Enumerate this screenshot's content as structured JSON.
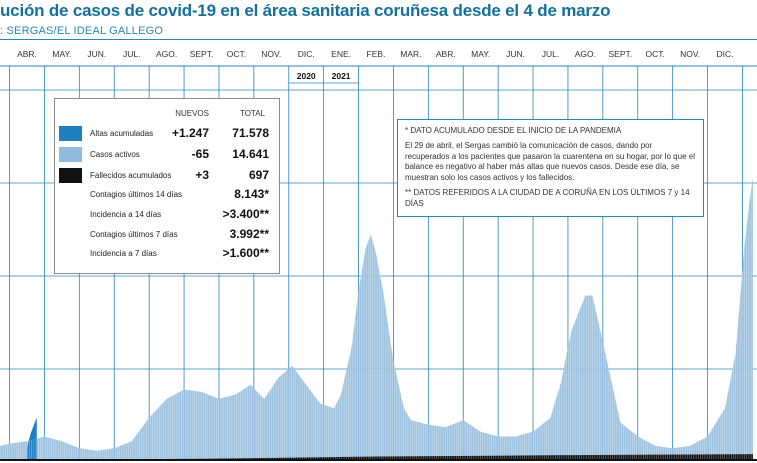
{
  "title": "ución de casos de covid-19 en el área sanitaria coruñesa desde el 4 de marzo",
  "source": ": SERGAS/EL IDEAL GALLEGO",
  "colors": {
    "altas": "#1f7fbf",
    "activos": "#93bbdd",
    "fallecidos": "#111111",
    "accent": "#2a86b8"
  },
  "legend": {
    "header_nuevos": "NUEVOS",
    "header_total": "TOTAL",
    "rows": [
      {
        "swatch": "altas",
        "label": "Altas acumuladas",
        "nuevos": "+1.247",
        "total": "71.578"
      },
      {
        "swatch": "activos",
        "label": "Casos activos",
        "nuevos": "-65",
        "total": "14.641"
      },
      {
        "swatch": "fallecidos",
        "label": "Fallecidos acumulados",
        "nuevos": "+3",
        "total": "697"
      },
      {
        "label": "Contagios últimos 14 días",
        "total": "8.143*"
      },
      {
        "label": "Incidencia a 14 días",
        "total": ">3.400**"
      },
      {
        "label": "Contagios últimos 7 días",
        "total": "3.992**"
      },
      {
        "label": "Incidencia a 7 días",
        "total": ">1.600**"
      }
    ]
  },
  "notes": {
    "note1": "* DATO ACUMULADO DESDE EL INICIO DE LA PANDEMIA",
    "note2": "El 29 de abril, el Sergas cambió la comunicación de casos, dando por recuperados a los pacientes que pasaron la cuarentena en su hogar, por lo que el balance es negativo al haber más altas que nuevos casos. Desde ese día, se muestran solo los casos activos y los fallecidos.",
    "note3": "** DATOS REFERIDOS A LA CIUDAD DE A CORUÑA EN LOS ÚLTIMOS 7 y 14 DÍAS"
  },
  "chart_data": {
    "type": "area",
    "title": "ución de casos de covid-19 en el área sanitaria coruñesa desde el 4 de marzo",
    "months": [
      "ABR.",
      "MAY.",
      "JUN.",
      "JUL.",
      "AGO.",
      "SEPT.",
      "OCT.",
      "NOV.",
      "DIC.",
      "ENE.",
      "FEB.",
      "MAR.",
      "ABR.",
      "MAY.",
      "JUN.",
      "JUL.",
      "AGO.",
      "SEPT.",
      "OCT.",
      "NOV.",
      "DIC."
    ],
    "year_labels": [
      {
        "label": "2020",
        "month_index": 8
      },
      {
        "label": "2021",
        "month_index": 9
      }
    ],
    "grid": true,
    "series": [
      {
        "name": "Altas acumuladas",
        "color_key": "altas",
        "points_relative": [
          [
            0,
            0.05
          ],
          [
            0.05,
            0.08
          ],
          [
            0.1,
            0.11
          ],
          [
            0.15,
            0.13
          ],
          [
            0.2,
            0.15
          ],
          [
            0.25,
            0.17
          ],
          [
            0.28,
            0.18
          ]
        ],
        "note": "Relative scale (0-1), month index 0 = ABR. 2020; no y-axis values are printed."
      },
      {
        "name": "Casos activos",
        "color_key": "activos",
        "points_relative": [
          [
            -1,
            0.05
          ],
          [
            -0.5,
            0.07
          ],
          [
            0,
            0.08
          ],
          [
            0.5,
            0.1
          ],
          [
            1,
            0.08
          ],
          [
            1.5,
            0.05
          ],
          [
            2,
            0.04
          ],
          [
            2.5,
            0.05
          ],
          [
            3,
            0.08
          ],
          [
            3.5,
            0.18
          ],
          [
            4,
            0.26
          ],
          [
            4.5,
            0.3
          ],
          [
            5,
            0.29
          ],
          [
            5.5,
            0.26
          ],
          [
            6,
            0.28
          ],
          [
            6.4,
            0.32
          ],
          [
            6.8,
            0.26
          ],
          [
            7.2,
            0.35
          ],
          [
            7.6,
            0.4
          ],
          [
            8,
            0.32
          ],
          [
            8.4,
            0.24
          ],
          [
            8.8,
            0.22
          ],
          [
            9,
            0.28
          ],
          [
            9.3,
            0.48
          ],
          [
            9.5,
            0.72
          ],
          [
            9.7,
            0.9
          ],
          [
            9.85,
            0.96
          ],
          [
            10,
            0.88
          ],
          [
            10.2,
            0.72
          ],
          [
            10.5,
            0.42
          ],
          [
            10.8,
            0.22
          ],
          [
            11,
            0.17
          ],
          [
            11.5,
            0.15
          ],
          [
            12,
            0.14
          ],
          [
            12.5,
            0.17
          ],
          [
            13,
            0.12
          ],
          [
            13.5,
            0.1
          ],
          [
            14,
            0.1
          ],
          [
            14.5,
            0.12
          ],
          [
            15,
            0.18
          ],
          [
            15.3,
            0.33
          ],
          [
            15.6,
            0.55
          ],
          [
            16,
            0.7
          ],
          [
            16.2,
            0.7
          ],
          [
            16.5,
            0.5
          ],
          [
            16.8,
            0.3
          ],
          [
            17,
            0.16
          ],
          [
            17.5,
            0.1
          ],
          [
            18,
            0.06
          ],
          [
            18.5,
            0.05
          ],
          [
            19,
            0.06
          ],
          [
            19.5,
            0.1
          ],
          [
            20,
            0.22
          ],
          [
            20.3,
            0.45
          ],
          [
            20.55,
            0.9
          ],
          [
            20.7,
            1.1
          ],
          [
            20.8,
            1.2
          ]
        ],
        "note": "Relative scale (0-1+) estimated from shape; no y-axis values are printed."
      },
      {
        "name": "Fallecidos acumulados",
        "color_key": "fallecidos",
        "points_relative": [
          [
            -1,
            0.0
          ],
          [
            5,
            0.005
          ],
          [
            10,
            0.015
          ],
          [
            15,
            0.02
          ],
          [
            20.8,
            0.025
          ]
        ],
        "note": "Thin dark band at the base of the chart."
      }
    ]
  }
}
